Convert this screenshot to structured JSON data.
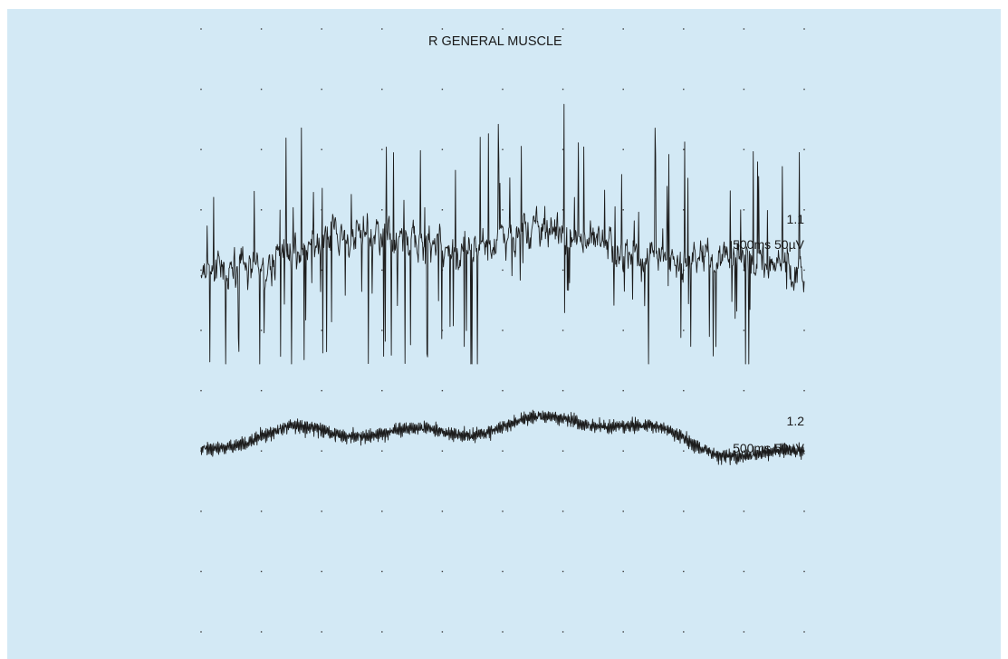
{
  "chart_data": {
    "type": "line",
    "title": "R GENERAL MUSCLE",
    "grid": true,
    "series": [
      {
        "name": "1.1",
        "scale_label": "500ms 50µV",
        "sweep_ms": 5000,
        "amplitude_range_uV": [
          -150,
          150
        ],
        "description_values": {
          "noise": "large-amplitude interference pattern"
        }
      },
      {
        "name": "1.2",
        "scale_label": "500ms 50µV",
        "sweep_ms": 5000,
        "amplitude_range_uV": [
          -15,
          15
        ]
      }
    ],
    "colors": {
      "background": "#d3e9f5",
      "trace": "#1c1c1c",
      "grid": "#3a3a3a"
    }
  }
}
